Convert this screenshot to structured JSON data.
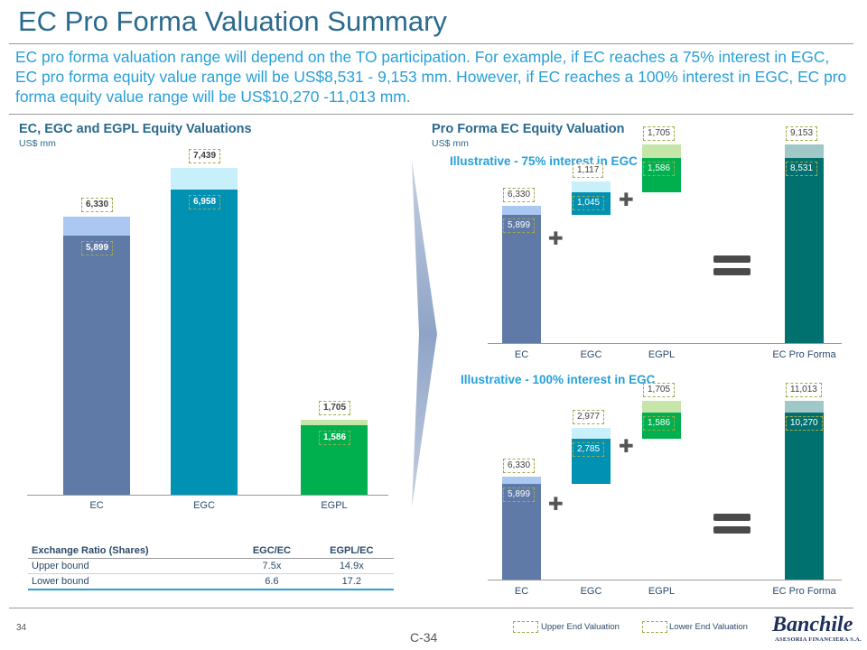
{
  "title": "EC Pro Forma Valuation Summary",
  "intro": "EC pro forma valuation range will depend on the TO participation. For example, if EC reaches a 75% interest in EGC, EC pro forma equity value range will be US$8,531 - 9,153 mm. However, if EC reaches a 100% interest in EGC, EC pro forma equity value range will be US$10,270 -11,013 mm.",
  "left": {
    "title": "EC, EGC and EGPL Equity Valuations",
    "unit": "US$ mm",
    "chart_data": {
      "type": "bar",
      "title": "EC, EGC and EGPL Equity Valuations",
      "ylabel": "US$ mm",
      "ylim": [
        0,
        7700
      ],
      "categories": [
        "EC",
        "EGC",
        "EGPL"
      ],
      "series": [
        {
          "name": "Lower End Valuation",
          "values": [
            5899,
            6958,
            1586
          ],
          "labels": [
            "5,899",
            "6,958",
            "1,586"
          ]
        },
        {
          "name": "Upper End Valuation",
          "values": [
            6330,
            7439,
            1705
          ],
          "labels": [
            "6,330",
            "7,439",
            "1,705"
          ]
        }
      ],
      "colors": {
        "lower": [
          "#5f7aa6",
          "#0091b3",
          "#00b04f"
        ],
        "upper": [
          "#aac8f2",
          "#c8f0fb",
          "#c5e6a8"
        ]
      }
    }
  },
  "table": {
    "headers": [
      "Exchange Ratio (Shares)",
      "EGC/EC",
      "EGPL/EC"
    ],
    "rows": [
      [
        "Upper bound",
        "7.5x",
        "14.9x"
      ],
      [
        "Lower bound",
        "6.6",
        "17.2"
      ]
    ]
  },
  "right": {
    "title": "Pro Forma EC Equity Valuation",
    "unit": "US$ mm",
    "charts": [
      {
        "subtitle": "Illustrative - 75% interest in EGC",
        "chart_data": {
          "type": "bar",
          "title": "Illustrative - 75% interest in EGC",
          "categories": [
            "EC",
            "EGC",
            "EGPL",
            "EC Pro Forma"
          ],
          "ylim": [
            0,
            10000
          ],
          "lower": [
            5899,
            1045,
            1586,
            8531
          ],
          "upper": [
            6330,
            1117,
            1705,
            9153
          ],
          "lower_labels": [
            "5,899",
            "1,045",
            "1,586",
            "8,531"
          ],
          "upper_labels": [
            "6,330",
            "1,117",
            "1,705",
            "9,153"
          ],
          "colors": {
            "lower": [
              "#5f7aa6",
              "#0091b3",
              "#00b04f",
              "#00716f"
            ],
            "upper": [
              "#aac8f2",
              "#c8f0fb",
              "#c5e6a8",
              "#9fc8c6"
            ]
          }
        }
      },
      {
        "subtitle": "Illustrative - 100% interest in EGC",
        "chart_data": {
          "type": "bar",
          "title": "Illustrative - 100% interest in EGC",
          "categories": [
            "EC",
            "EGC",
            "EGPL",
            "EC Pro Forma"
          ],
          "ylim": [
            0,
            11600
          ],
          "lower": [
            5899,
            2785,
            1586,
            10270
          ],
          "upper": [
            6330,
            2977,
            1705,
            11013
          ],
          "lower_labels": [
            "5,899",
            "2,785",
            "1,586",
            "10,270"
          ],
          "upper_labels": [
            "6,330",
            "2,977",
            "1,705",
            "11,013"
          ],
          "colors": {
            "lower": [
              "#5f7aa6",
              "#0091b3",
              "#00b04f",
              "#00716f"
            ],
            "upper": [
              "#aac8f2",
              "#c8f0fb",
              "#c5e6a8",
              "#9fc8c6"
            ]
          }
        }
      }
    ],
    "operators": {
      "plus": "✚",
      "equals": "equals-icon"
    }
  },
  "legend": {
    "upper": "Upper End Valuation",
    "lower": "Lower End Valuation"
  },
  "footer": {
    "page": "34",
    "code": "C-34",
    "logo": "Banchile",
    "logo_sub": "ASESORIA FINANCIERA S.A."
  }
}
